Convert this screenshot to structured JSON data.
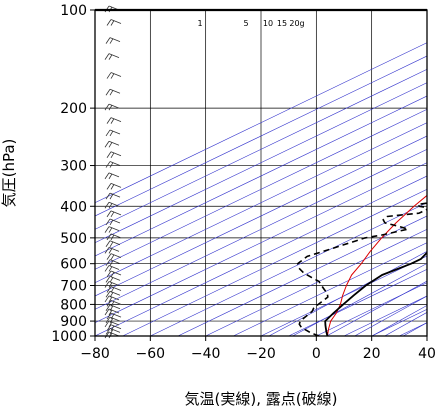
{
  "chart_data": {
    "type": "skew-t log-p",
    "xlabel": "気温(実線), 露点(破線)",
    "ylabel": "気圧(hPa)",
    "xlim": [
      -80,
      40
    ],
    "ylim": [
      1000,
      100
    ],
    "x_ticks": [
      -80,
      -60,
      -40,
      -20,
      0,
      20,
      40
    ],
    "y_ticks": [
      100,
      200,
      300,
      400,
      500,
      600,
      700,
      800,
      900,
      1000
    ],
    "mixing_ratio_labels": [
      "1",
      "5",
      "10",
      "15",
      "20g"
    ],
    "colors": {
      "isotherm": "#3333cc",
      "parcel": "#dd0000",
      "temperature": "#000000",
      "dewpoint": "#000000",
      "wind_barb": "#333333"
    },
    "temperature": [
      {
        "p": 1000,
        "t": 4
      },
      {
        "p": 975,
        "t": 1
      },
      {
        "p": 950,
        "t": -2
      },
      {
        "p": 925,
        "t": -5
      },
      {
        "p": 900,
        "t": -8
      },
      {
        "p": 850,
        "t": -11
      },
      {
        "p": 800,
        "t": -14
      },
      {
        "p": 750,
        "t": -17
      },
      {
        "p": 700,
        "t": -20
      },
      {
        "p": 650,
        "t": -22
      },
      {
        "p": 600,
        "t": -20
      },
      {
        "p": 580,
        "t": -20
      },
      {
        "p": 560,
        "t": -22
      },
      {
        "p": 540,
        "t": -24
      },
      {
        "p": 520,
        "t": -25
      },
      {
        "p": 500,
        "t": -26
      },
      {
        "p": 480,
        "t": -27
      },
      {
        "p": 460,
        "t": -28
      },
      {
        "p": 440,
        "t": -29
      },
      {
        "p": 420,
        "t": -29
      },
      {
        "p": 400,
        "t": -29
      },
      {
        "p": 380,
        "t": -28
      },
      {
        "p": 370,
        "t": -27
      },
      {
        "p": 360,
        "t": -28
      },
      {
        "p": 350,
        "t": -27
      },
      {
        "p": 340,
        "t": -27
      },
      {
        "p": 320,
        "t": -26
      },
      {
        "p": 300,
        "t": -27
      },
      {
        "p": 280,
        "t": -30
      },
      {
        "p": 260,
        "t": -33
      },
      {
        "p": 240,
        "t": -36
      },
      {
        "p": 220,
        "t": -40
      },
      {
        "p": 200,
        "t": -43
      },
      {
        "p": 180,
        "t": -46
      },
      {
        "p": 160,
        "t": -51
      },
      {
        "p": 150,
        "t": -53
      },
      {
        "p": 140,
        "t": -54
      },
      {
        "p": 130,
        "t": -58
      },
      {
        "p": 120,
        "t": -62
      },
      {
        "p": 110,
        "t": -64
      },
      {
        "p": 105,
        "t": -65
      },
      {
        "p": 100,
        "t": -65
      }
    ],
    "dewpoint": [
      {
        "p": 1000,
        "t": 1
      },
      {
        "p": 980,
        "t": -4
      },
      {
        "p": 960,
        "t": -8
      },
      {
        "p": 940,
        "t": -12
      },
      {
        "p": 920,
        "t": -15
      },
      {
        "p": 900,
        "t": -17
      },
      {
        "p": 880,
        "t": -18
      },
      {
        "p": 860,
        "t": -19
      },
      {
        "p": 840,
        "t": -20
      },
      {
        "p": 820,
        "t": -22
      },
      {
        "p": 800,
        "t": -23
      },
      {
        "p": 780,
        "t": -24
      },
      {
        "p": 760,
        "t": -25
      },
      {
        "p": 740,
        "t": -28
      },
      {
        "p": 720,
        "t": -32
      },
      {
        "p": 700,
        "t": -36
      },
      {
        "p": 680,
        "t": -40
      },
      {
        "p": 660,
        "t": -46
      },
      {
        "p": 640,
        "t": -52
      },
      {
        "p": 620,
        "t": -57
      },
      {
        "p": 600,
        "t": -61
      },
      {
        "p": 570,
        "t": -63
      },
      {
        "p": 550,
        "t": -61
      },
      {
        "p": 530,
        "t": -59
      },
      {
        "p": 510,
        "t": -57
      },
      {
        "p": 500,
        "t": -56
      },
      {
        "p": 490,
        "t": -52
      },
      {
        "p": 470,
        "t": -47
      },
      {
        "p": 460,
        "t": -53
      },
      {
        "p": 450,
        "t": -60
      },
      {
        "p": 440,
        "t": -63
      },
      {
        "p": 430,
        "t": -64
      },
      {
        "p": 425,
        "t": -60
      },
      {
        "p": 420,
        "t": -55
      },
      {
        "p": 412,
        "t": -55
      },
      {
        "p": 405,
        "t": -55
      },
      {
        "p": 400,
        "t": -60
      },
      {
        "p": 395,
        "t": -62
      },
      {
        "p": 385,
        "t": -56
      },
      {
        "p": 370,
        "t": -58
      },
      {
        "p": 360,
        "t": -60
      },
      {
        "p": 345,
        "t": -61
      },
      {
        "p": 330,
        "t": -57
      },
      {
        "p": 320,
        "t": -58
      },
      {
        "p": 310,
        "t": -60
      },
      {
        "p": 300,
        "t": -63
      },
      {
        "p": 290,
        "t": -65
      }
    ],
    "parcel": [
      {
        "p": 1000,
        "t": 4
      },
      {
        "p": 950,
        "t": -1
      },
      {
        "p": 900,
        "t": -6
      },
      {
        "p": 850,
        "t": -10
      },
      {
        "p": 800,
        "t": -15
      },
      {
        "p": 750,
        "t": -21
      },
      {
        "p": 700,
        "t": -27
      },
      {
        "p": 650,
        "t": -33
      },
      {
        "p": 600,
        "t": -38
      },
      {
        "p": 550,
        "t": -44
      },
      {
        "p": 500,
        "t": -50
      },
      {
        "p": 450,
        "t": -56
      },
      {
        "p": 400,
        "t": -62
      },
      {
        "p": 350,
        "t": -68
      },
      {
        "p": 300,
        "t": -75
      },
      {
        "p": 270,
        "t": -79
      }
    ],
    "wind_levels": [
      1000,
      975,
      950,
      925,
      900,
      875,
      850,
      825,
      800,
      775,
      750,
      725,
      700,
      675,
      650,
      625,
      600,
      575,
      550,
      525,
      500,
      475,
      450,
      425,
      400,
      375,
      350,
      325,
      300,
      280,
      260,
      240,
      220,
      200,
      180,
      160,
      140,
      125,
      110,
      100
    ]
  }
}
